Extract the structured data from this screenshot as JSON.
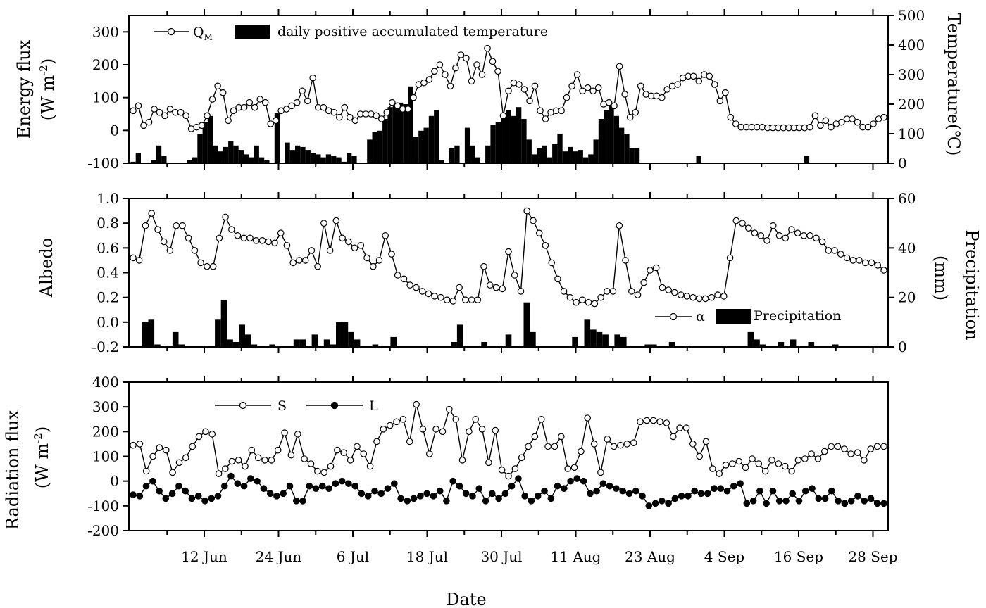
{
  "chart_data": [
    {
      "type": "line+bar",
      "panel": "top",
      "ylabel_left": "Energy flux",
      "ylabel_left_units": "(W m",
      "ylabel_left_sup": "-2",
      "ylabel_left_close": ")",
      "ylabel_right": "Temperature(℃)",
      "ylim_left": [
        -100,
        350
      ],
      "ylim_right": [
        0,
        500
      ],
      "yticks_left": [
        "-100",
        "0",
        "100",
        "200",
        "300"
      ],
      "yticks_right": [
        "0",
        "100",
        "200",
        "300",
        "400",
        "500"
      ],
      "legend": {
        "line": "Q",
        "line_sub": "M",
        "bar": "daily positive accumulated temperature"
      },
      "series": [
        {
          "name": "Q",
          "kind": "line",
          "values": [
            60,
            75,
            15,
            25,
            65,
            55,
            45,
            65,
            55,
            55,
            45,
            5,
            10,
            15,
            45,
            95,
            135,
            115,
            30,
            60,
            70,
            70,
            85,
            70,
            95,
            85,
            20,
            30,
            60,
            65,
            75,
            85,
            120,
            90,
            160,
            70,
            70,
            60,
            55,
            40,
            70,
            40,
            30,
            50,
            50,
            50,
            45,
            35,
            55,
            85,
            75,
            65,
            65,
            100,
            140,
            145,
            155,
            180,
            200,
            170,
            135,
            190,
            230,
            220,
            150,
            200,
            170,
            250,
            210,
            180,
            45,
            120,
            145,
            140,
            125,
            90,
            135,
            60,
            35,
            55,
            60,
            60,
            100,
            135,
            170,
            120,
            130,
            120,
            130,
            80,
            85,
            75,
            195,
            110,
            40,
            55,
            135,
            110,
            105,
            105,
            100,
            125,
            135,
            140,
            160,
            165,
            165,
            150,
            170,
            165,
            140,
            90,
            115,
            40,
            20,
            10,
            10,
            10,
            10,
            10,
            8,
            8,
            8,
            8,
            8,
            8,
            8,
            8,
            10,
            45,
            15,
            30,
            10,
            20,
            25,
            35,
            35,
            25,
            10,
            10,
            20,
            35,
            40
          ]
        },
        {
          "name": "daily positive accumulated temperature",
          "kind": "bar",
          "values": [
            5,
            35,
            0,
            0,
            10,
            60,
            25,
            0,
            0,
            0,
            0,
            10,
            20,
            100,
            140,
            160,
            60,
            40,
            55,
            75,
            60,
            45,
            30,
            20,
            60,
            20,
            10,
            0,
            170,
            0,
            70,
            45,
            60,
            55,
            45,
            35,
            30,
            20,
            30,
            25,
            20,
            5,
            35,
            25,
            0,
            0,
            80,
            105,
            110,
            150,
            190,
            205,
            205,
            200,
            260,
            90,
            110,
            120,
            160,
            180,
            10,
            0,
            50,
            60,
            0,
            120,
            60,
            20,
            0,
            60,
            130,
            140,
            160,
            180,
            160,
            190,
            150,
            80,
            30,
            50,
            60,
            20,
            65,
            100,
            40,
            55,
            40,
            45,
            20,
            30,
            80,
            150,
            180,
            200,
            160,
            120,
            100,
            50,
            50,
            0,
            0,
            0,
            0,
            0,
            0,
            0,
            0,
            0,
            0,
            0,
            25,
            0,
            0,
            0,
            0,
            0,
            0,
            0,
            0,
            0,
            0,
            0,
            0,
            0,
            0,
            0,
            0,
            0,
            0,
            0,
            0,
            25,
            0,
            0,
            0,
            0,
            0,
            0,
            0,
            0,
            0,
            0,
            0,
            0,
            0,
            0,
            0
          ]
        }
      ]
    },
    {
      "type": "line+bar",
      "panel": "middle",
      "ylabel_left": "Albedo",
      "ylabel_right": "Precipitation",
      "ylabel_right_units": "(mm)",
      "ylim_left": [
        -0.2,
        1.0
      ],
      "ylim_right": [
        0,
        60
      ],
      "yticks_left": [
        "-0.2",
        "0.0",
        "0.2",
        "0.4",
        "0.6",
        "0.8",
        "1.0"
      ],
      "yticks_right": [
        "0",
        "20",
        "40",
        "60"
      ],
      "legend": {
        "line": "α",
        "bar": "Precipitation"
      },
      "series": [
        {
          "name": "α",
          "kind": "line",
          "values": [
            0.52,
            0.5,
            0.78,
            0.88,
            0.75,
            0.65,
            0.58,
            0.78,
            0.78,
            0.68,
            0.58,
            0.48,
            0.45,
            0.45,
            0.68,
            0.85,
            0.75,
            0.7,
            0.68,
            0.68,
            0.66,
            0.66,
            0.65,
            0.64,
            0.72,
            0.62,
            0.48,
            0.5,
            0.5,
            0.58,
            0.45,
            0.8,
            0.58,
            0.82,
            0.68,
            0.65,
            0.6,
            0.62,
            0.52,
            0.45,
            0.5,
            0.7,
            0.55,
            0.38,
            0.35,
            0.3,
            0.28,
            0.25,
            0.23,
            0.21,
            0.2,
            0.18,
            0.17,
            0.28,
            0.18,
            0.18,
            0.18,
            0.45,
            0.3,
            0.28,
            0.27,
            0.57,
            0.38,
            0.25,
            0.9,
            0.82,
            0.72,
            0.62,
            0.48,
            0.35,
            0.25,
            0.2,
            0.16,
            0.18,
            0.16,
            0.15,
            0.2,
            0.25,
            0.25,
            0.78,
            0.5,
            0.25,
            0.22,
            0.32,
            0.42,
            0.44,
            0.28,
            0.26,
            0.24,
            0.22,
            0.21,
            0.2,
            0.19,
            0.19,
            0.2,
            0.22,
            0.21,
            0.52,
            0.82,
            0.8,
            0.76,
            0.72,
            0.7,
            0.66,
            0.78,
            0.7,
            0.68,
            0.75,
            0.72,
            0.7,
            0.7,
            0.68,
            0.65,
            0.58,
            0.58,
            0.55,
            0.52,
            0.5,
            0.5,
            0.48,
            0.48,
            0.46,
            0.42
          ]
        },
        {
          "name": "Precipitation",
          "kind": "bar",
          "values": [
            0,
            0,
            10,
            11,
            1,
            0,
            0,
            6,
            1,
            0,
            0,
            0,
            0,
            0,
            11,
            19,
            3,
            2,
            9,
            5,
            1,
            0,
            0,
            1,
            0,
            0,
            0,
            3,
            3,
            0,
            5,
            0,
            3,
            1,
            10,
            10,
            6,
            3,
            0,
            0,
            1,
            0,
            0,
            4,
            0,
            0,
            0,
            0,
            0,
            0,
            0,
            0,
            0,
            2,
            9,
            0,
            0,
            0,
            2,
            0,
            0,
            0,
            5,
            0,
            0,
            18,
            6,
            0,
            0,
            0,
            0,
            0,
            0,
            4,
            0,
            11,
            7,
            6,
            5,
            0,
            5,
            4,
            0,
            0,
            0,
            1,
            1,
            0,
            0,
            2,
            0,
            0,
            0,
            0,
            0,
            0,
            0,
            0,
            0,
            0,
            0,
            0,
            6,
            3,
            1,
            0,
            0,
            2,
            0,
            3,
            0,
            0,
            2,
            0,
            0,
            0,
            1,
            0,
            0,
            0,
            0,
            0,
            0,
            0,
            0
          ]
        }
      ]
    },
    {
      "type": "line",
      "panel": "bottom",
      "ylabel_left": "Radiation flux",
      "ylabel_left_units": "(W m",
      "ylabel_left_sup": "-2",
      "ylabel_left_close": ")",
      "ylim_left": [
        -200,
        400
      ],
      "yticks_left": [
        "-200",
        "-100",
        "0",
        "100",
        "200",
        "300",
        "400"
      ],
      "xlabel": "Date",
      "xticks": [
        "12 Jun",
        "24 Jun",
        "6 Jul",
        "18 Jul",
        "30 Jul",
        "11 Aug",
        "23 Aug",
        "4 Sep",
        "16 Sep",
        "28 Sep"
      ],
      "legend": {
        "s": "S",
        "l": "L"
      },
      "series": [
        {
          "name": "S",
          "kind": "line",
          "marker": "open",
          "values": [
            145,
            150,
            40,
            100,
            135,
            125,
            35,
            75,
            95,
            140,
            180,
            200,
            190,
            30,
            50,
            80,
            85,
            60,
            125,
            95,
            85,
            85,
            125,
            195,
            105,
            190,
            90,
            70,
            40,
            35,
            60,
            125,
            115,
            85,
            140,
            110,
            60,
            160,
            210,
            225,
            240,
            250,
            160,
            310,
            210,
            110,
            210,
            200,
            290,
            250,
            85,
            200,
            250,
            210,
            75,
            205,
            45,
            20,
            50,
            95,
            140,
            180,
            250,
            140,
            140,
            180,
            50,
            55,
            120,
            255,
            150,
            35,
            170,
            140,
            145,
            150,
            155,
            240,
            245,
            245,
            240,
            235,
            180,
            215,
            215,
            150,
            100,
            160,
            50,
            30,
            65,
            70,
            80,
            55,
            90,
            70,
            40,
            85,
            70,
            60,
            40,
            85,
            90,
            110,
            90,
            120,
            140,
            140,
            130,
            110,
            115,
            85,
            130,
            140,
            140
          ]
        },
        {
          "name": "L",
          "kind": "line",
          "marker": "filled",
          "values": [
            -55,
            -60,
            -20,
            0,
            -40,
            -70,
            -50,
            -20,
            -40,
            -70,
            -60,
            -80,
            -70,
            -60,
            -20,
            20,
            -10,
            -20,
            10,
            0,
            -30,
            -50,
            -60,
            -50,
            -20,
            -80,
            -80,
            -20,
            -30,
            -20,
            -30,
            -10,
            0,
            -10,
            -20,
            -50,
            -60,
            -40,
            -50,
            -30,
            -10,
            -70,
            -80,
            -70,
            -60,
            -50,
            -60,
            -40,
            -80,
            0,
            -20,
            -50,
            -60,
            -30,
            -80,
            -50,
            -70,
            -50,
            -20,
            10,
            -60,
            -80,
            -60,
            -40,
            -70,
            -20,
            -30,
            0,
            10,
            0,
            -50,
            -40,
            -10,
            -20,
            -30,
            -40,
            -50,
            -40,
            -60,
            -100,
            -90,
            -80,
            -90,
            -70,
            -60,
            -60,
            -40,
            -50,
            -50,
            -30,
            -30,
            -40,
            -20,
            -10,
            -90,
            -80,
            -40,
            -90,
            -40,
            -80,
            -80,
            -50,
            -80,
            -40,
            -30,
            -70,
            -70,
            -40,
            -80,
            -90,
            -80,
            -60,
            -80,
            -70,
            -90,
            -90
          ]
        }
      ]
    }
  ]
}
